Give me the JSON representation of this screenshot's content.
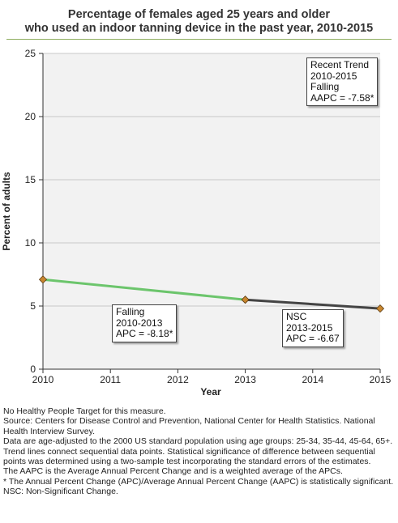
{
  "title_lines": [
    "Percentage of females aged 25 years and older",
    "who used an indoor tanning device in the past year, 2010-2015"
  ],
  "chart_data": {
    "type": "line",
    "title": "Percentage of females aged 25 years and older who used an indoor tanning device in the past year, 2010-2015",
    "xlabel": "Year",
    "ylabel": "Percent of adults",
    "x_ticks": [
      "2010",
      "2011",
      "2012",
      "2013",
      "2014",
      "2015"
    ],
    "y_ticks": [
      "0",
      "5",
      "10",
      "15",
      "20",
      "25"
    ],
    "xlim": [
      2010,
      2015
    ],
    "ylim": [
      0,
      25
    ],
    "grid": true,
    "points": [
      {
        "x": 2010,
        "y": 7.1
      },
      {
        "x": 2013,
        "y": 5.5
      },
      {
        "x": 2015,
        "y": 4.8
      }
    ],
    "segments": [
      {
        "from": 2010,
        "to": 2013,
        "color": "#6cc56c",
        "label_lines": [
          "Falling",
          "2010-2013",
          "APC = -8.18*"
        ]
      },
      {
        "from": 2013,
        "to": 2015,
        "color": "#444444",
        "label_lines": [
          "NSC",
          "2013-2015",
          "APC = -6.67"
        ]
      }
    ],
    "trend_box_lines": [
      "Recent Trend",
      "2010-2015",
      "Falling",
      "AAPC = -7.58*"
    ],
    "marker_color": "#c8862f",
    "plot_background": "#f2f2f2",
    "gridline_color": "#c8c8c8"
  },
  "notes": [
    "No Healthy People Target for this measure.",
    "Source: Centers for Disease Control and Prevention, National Center for Health Statistics. National Health Interview Survey.",
    "Data are age-adjusted to the 2000 US standard population using age groups: 25-34, 35-44, 45-64, 65+.",
    "Trend lines connect sequential data points. Statistical significance of difference between sequential points was determined using a two-sample test incorporating the standard errors of the estimates.",
    "The AAPC is the Average Annual Percent Change and is a weighted average of the APCs.",
    "* The Annual Percent Change (APC)/Average Annual Percent Change (AAPC) is statistically significant.",
    "NSC: Non-Significant Change."
  ]
}
